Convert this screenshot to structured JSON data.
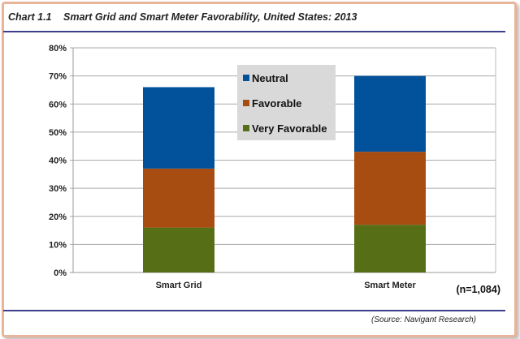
{
  "header": {
    "chart_number": "Chart 1.1",
    "title": "Smart Grid and Smart Meter Favorability, United States: 2013"
  },
  "source": "(Source: Navigant Research)",
  "note": "(n=1,084)",
  "colors": {
    "Neutral": "#02529b",
    "Favorable": "#a84d12",
    "Very Favorable": "#566e16"
  },
  "chart_data": {
    "type": "bar",
    "stacked": true,
    "title": "Smart Grid and Smart Meter Favorability, United States: 2013",
    "categories": [
      "Smart Grid",
      "Smart Meter"
    ],
    "series": [
      {
        "name": "Very Favorable",
        "values": [
          16,
          17
        ]
      },
      {
        "name": "Favorable",
        "values": [
          21,
          26
        ]
      },
      {
        "name": "Neutral",
        "values": [
          29,
          27
        ]
      }
    ],
    "legend_order": [
      "Neutral",
      "Favorable",
      "Very Favorable"
    ],
    "ylim": [
      0,
      80
    ],
    "yticks": [
      "0%",
      "10%",
      "20%",
      "30%",
      "40%",
      "50%",
      "60%",
      "70%",
      "80%"
    ],
    "xlabel": "",
    "ylabel": "",
    "grid": true,
    "legend_placement": "top-center"
  }
}
